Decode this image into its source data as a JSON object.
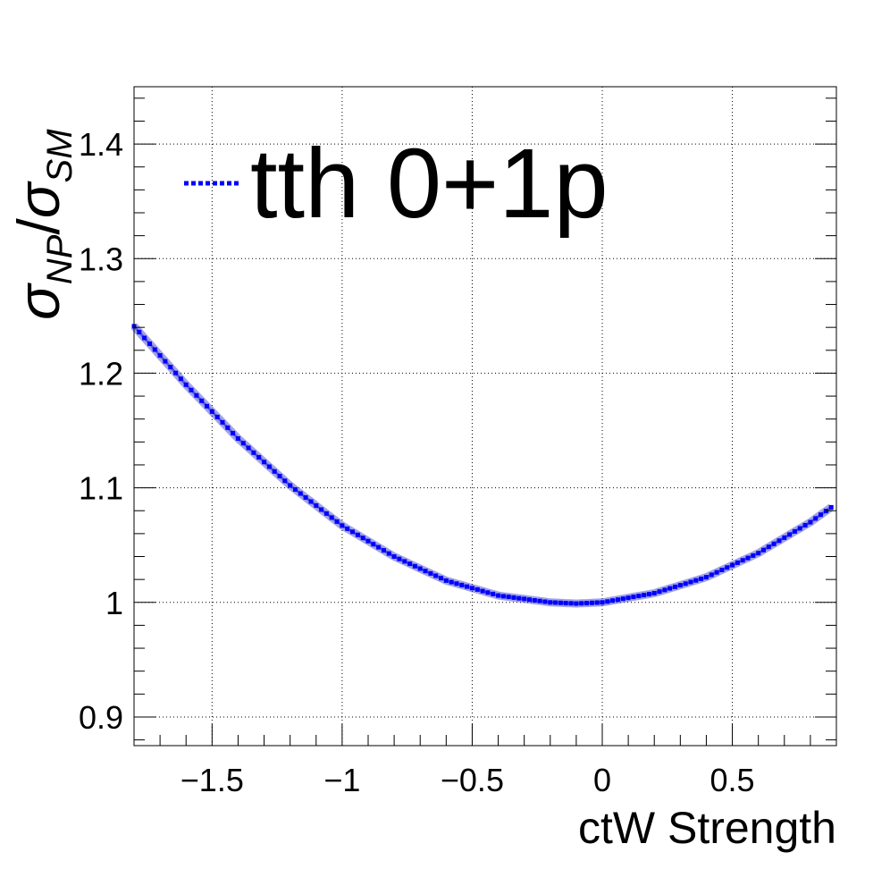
{
  "chart_data": {
    "type": "line",
    "xlabel": "ctW Strength",
    "ylabel": "σNP/σSM",
    "ylabel_parts": {
      "sigma1": "σ",
      "sub1": "NP",
      "slash": "/",
      "sigma2": "σ",
      "sub2": "SM"
    },
    "xlim": [
      -1.8,
      0.9
    ],
    "ylim": [
      0.875,
      1.45
    ],
    "x_ticks": [
      {
        "value": -1.5,
        "label": "−1.5"
      },
      {
        "value": -1,
        "label": "−1"
      },
      {
        "value": -0.5,
        "label": "−0.5"
      },
      {
        "value": 0,
        "label": "0"
      },
      {
        "value": 0.5,
        "label": "0.5"
      }
    ],
    "y_ticks": [
      {
        "value": 0.9,
        "label": "0.9"
      },
      {
        "value": 1,
        "label": "1"
      },
      {
        "value": 1.1,
        "label": "1.1"
      },
      {
        "value": 1.2,
        "label": "1.2"
      },
      {
        "value": 1.3,
        "label": "1.3"
      },
      {
        "value": 1.4,
        "label": "1.4"
      }
    ],
    "grid": true,
    "legend_position": "top-left",
    "series": [
      {
        "name": "tth 0+1p",
        "color": "#0000ff",
        "band_color": "#3333cc",
        "x": [
          -1.8,
          -1.6,
          -1.4,
          -1.2,
          -1.0,
          -0.8,
          -0.6,
          -0.4,
          -0.2,
          -0.1,
          0.0,
          0.2,
          0.4,
          0.6,
          0.8,
          0.88
        ],
        "y": [
          1.241,
          1.19,
          1.143,
          1.102,
          1.067,
          1.04,
          1.019,
          1.006,
          1.0,
          0.999,
          1.0,
          1.008,
          1.022,
          1.043,
          1.07,
          1.083
        ]
      }
    ]
  }
}
